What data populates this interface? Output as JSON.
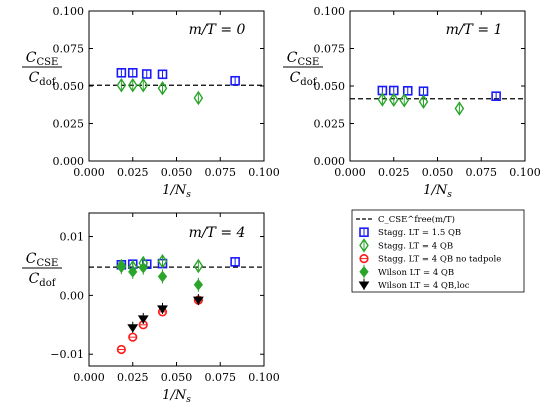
{
  "chart_data": [
    {
      "type": "scatter",
      "annotation_title": "m/T = 0",
      "ylabel_top": "C_CSE",
      "ylabel_bottom": "C_dof",
      "xlabel": "1/N_s",
      "xlim": [
        0.0,
        0.1
      ],
      "ylim": [
        0.0,
        0.1
      ],
      "xticks": [
        "0.000",
        "0.025",
        "0.050",
        "0.075",
        "0.100"
      ],
      "yticks": [
        "0.000",
        "0.025",
        "0.050",
        "0.075",
        "0.100"
      ],
      "ytick_values": [
        0.0,
        0.025,
        0.05,
        0.075,
        0.1
      ],
      "dashed_line_y": 0.0505,
      "series": [
        {
          "key": "stagg15",
          "points": [
            [
              0.0185,
              0.0588
            ],
            [
              0.025,
              0.0588
            ],
            [
              0.033,
              0.058
            ],
            [
              0.042,
              0.0578
            ],
            [
              0.0835,
              0.0535
            ]
          ]
        },
        {
          "key": "stagg4",
          "points": [
            [
              0.0185,
              0.0505
            ],
            [
              0.025,
              0.0505
            ],
            [
              0.031,
              0.0505
            ],
            [
              0.042,
              0.0485
            ],
            [
              0.0625,
              0.042
            ]
          ]
        }
      ]
    },
    {
      "type": "scatter",
      "annotation_title": "m/T = 1",
      "ylabel_top": "C_CSE",
      "ylabel_bottom": "C_dof",
      "xlabel": "1/N_s",
      "xlim": [
        0.0,
        0.1
      ],
      "ylim": [
        0.0,
        0.1
      ],
      "xticks": [
        "0.000",
        "0.025",
        "0.050",
        "0.075",
        "0.100"
      ],
      "yticks": [
        "0.000",
        "0.025",
        "0.050",
        "0.075",
        "0.100"
      ],
      "ytick_values": [
        0.0,
        0.025,
        0.05,
        0.075,
        0.1
      ],
      "dashed_line_y": 0.0415,
      "series": [
        {
          "key": "stagg15",
          "points": [
            [
              0.0185,
              0.047
            ],
            [
              0.025,
              0.047
            ],
            [
              0.033,
              0.0468
            ],
            [
              0.042,
              0.0465
            ],
            [
              0.0835,
              0.0432
            ]
          ]
        },
        {
          "key": "stagg4",
          "points": [
            [
              0.0185,
              0.041
            ],
            [
              0.025,
              0.0408
            ],
            [
              0.031,
              0.0405
            ],
            [
              0.042,
              0.0395
            ],
            [
              0.0625,
              0.035
            ]
          ]
        }
      ]
    },
    {
      "type": "scatter",
      "annotation_title": "m/T = 4",
      "ylabel_top": "C_CSE",
      "ylabel_bottom": "C_dof",
      "xlabel": "1/N_s",
      "xlim": [
        0.0,
        0.1
      ],
      "ylim": [
        -0.012,
        0.014
      ],
      "xticks": [
        "0.000",
        "0.025",
        "0.050",
        "0.075",
        "0.100"
      ],
      "yticks": [
        "−0.01",
        "0.00",
        "0.01"
      ],
      "ytick_values": [
        -0.01,
        0.0,
        0.01
      ],
      "dashed_line_y": 0.0048,
      "series": [
        {
          "key": "stagg15",
          "points": [
            [
              0.0185,
              0.0052
            ],
            [
              0.025,
              0.0053
            ],
            [
              0.033,
              0.0053
            ],
            [
              0.042,
              0.0054
            ],
            [
              0.0835,
              0.0057
            ]
          ]
        },
        {
          "key": "stagg4",
          "points": [
            [
              0.0185,
              0.005
            ],
            [
              0.025,
              0.0048
            ],
            [
              0.031,
              0.0055
            ],
            [
              0.042,
              0.0058
            ],
            [
              0.0625,
              0.005
            ]
          ]
        },
        {
          "key": "notad",
          "points": [
            [
              0.0185,
              -0.0092
            ],
            [
              0.025,
              -0.0071
            ],
            [
              0.031,
              -0.005
            ],
            [
              0.042,
              -0.0028
            ],
            [
              0.0625,
              -0.0008
            ]
          ]
        },
        {
          "key": "wilson",
          "points": [
            [
              0.0185,
              0.0048
            ],
            [
              0.025,
              0.004
            ],
            [
              0.031,
              0.0047
            ],
            [
              0.042,
              0.0032
            ],
            [
              0.0625,
              0.0018
            ]
          ]
        },
        {
          "key": "wilsonloc",
          "points": [
            [
              0.025,
              -0.0055
            ],
            [
              0.031,
              -0.004
            ],
            [
              0.042,
              -0.0023
            ],
            [
              0.0625,
              -0.0008
            ]
          ]
        }
      ]
    }
  ],
  "legend": {
    "position": "bottom-right",
    "entries": [
      {
        "key": "dashed",
        "label": "C_CSE^free(m/T)"
      },
      {
        "key": "stagg15",
        "label": "Stagg. LT = 1.5 QB"
      },
      {
        "key": "stagg4",
        "label": "Stagg. LT = 4 QB"
      },
      {
        "key": "notad",
        "label": "Stagg. LT = 4 QB no tadpole"
      },
      {
        "key": "wilson",
        "label": "Wilson LT = 4 QB"
      },
      {
        "key": "wilsonloc",
        "label": "Wilson LT = 4 QB,loc"
      }
    ]
  },
  "colors": {
    "stagg15": "#1a1aff",
    "stagg4": "#2aa52a",
    "notad": "#ff1a1a",
    "wilson": "#2aa52a",
    "wilsonloc": "#000000",
    "axis": "#000000"
  }
}
